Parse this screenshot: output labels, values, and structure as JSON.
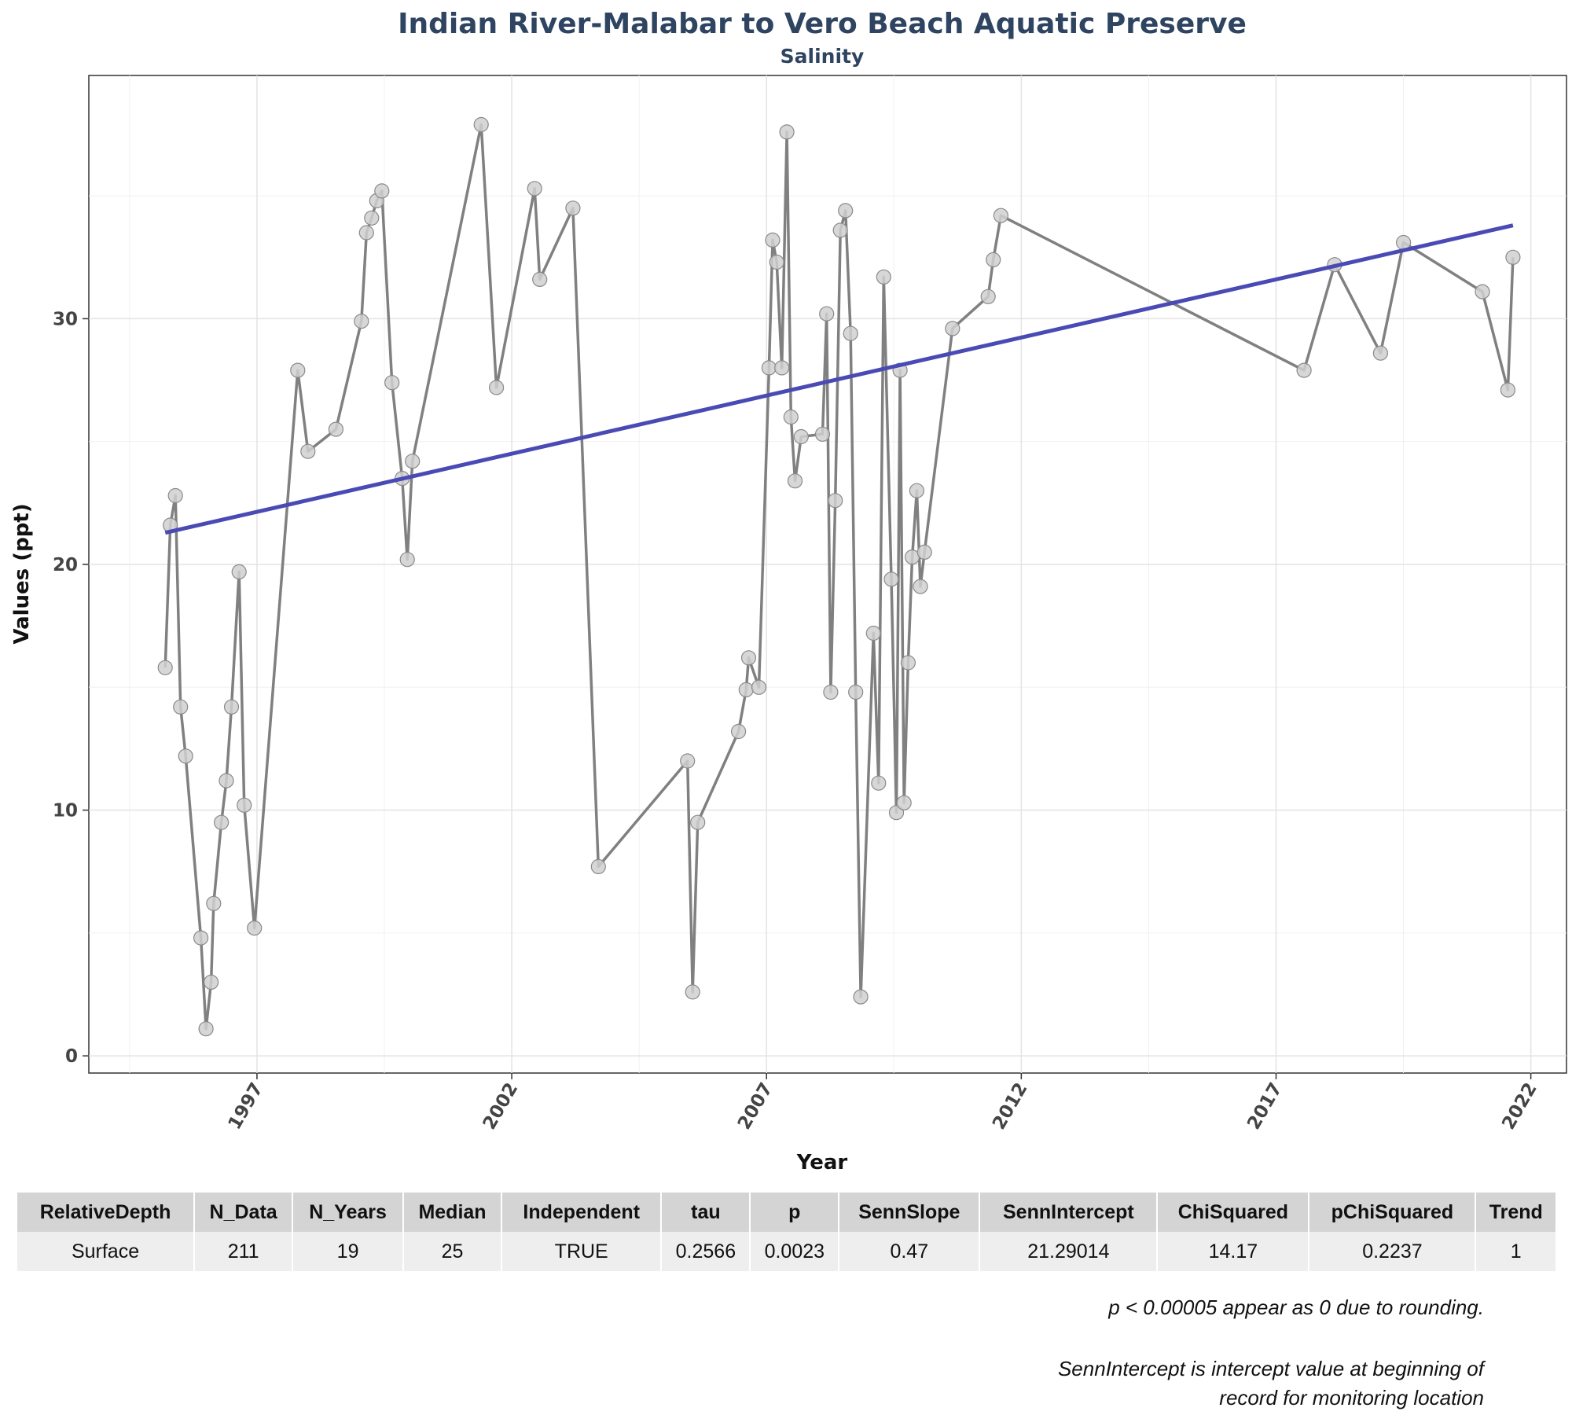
{
  "chart_data": {
    "type": "line",
    "title": "Indian River-Malabar to Vero Beach Aquatic Preserve",
    "subtitle": "Salinity",
    "xlabel": "Year",
    "ylabel": "Values (ppt)",
    "xlim": [
      1993.7,
      2022.7
    ],
    "ylim": [
      -0.7,
      39.9
    ],
    "x_ticks": [
      "1997",
      "2002",
      "2007",
      "2012",
      "2017",
      "2022"
    ],
    "y_ticks": [
      "0",
      "10",
      "20",
      "30"
    ],
    "grid": true,
    "series": [
      {
        "points": [
          [
            1995.2,
            15.8
          ],
          [
            1995.3,
            21.6
          ],
          [
            1995.4,
            22.8
          ],
          [
            1995.5,
            14.2
          ],
          [
            1995.6,
            12.2
          ],
          [
            1995.9,
            4.8
          ],
          [
            1996.0,
            1.1
          ],
          [
            1996.1,
            3.0
          ],
          [
            1996.15,
            6.2
          ],
          [
            1996.3,
            9.5
          ],
          [
            1996.4,
            11.2
          ],
          [
            1996.5,
            14.2
          ],
          [
            1996.65,
            19.7
          ],
          [
            1996.75,
            10.2
          ],
          [
            1996.95,
            5.2
          ],
          [
            1997.8,
            27.9
          ],
          [
            1998.0,
            24.6
          ],
          [
            1998.55,
            25.5
          ],
          [
            1999.05,
            29.9
          ],
          [
            1999.15,
            33.5
          ],
          [
            1999.25,
            34.1
          ],
          [
            1999.35,
            34.8
          ],
          [
            1999.45,
            35.2
          ],
          [
            1999.65,
            27.4
          ],
          [
            1999.85,
            23.5
          ],
          [
            1999.95,
            20.2
          ],
          [
            2000.05,
            24.2
          ],
          [
            2001.4,
            37.9
          ],
          [
            2001.7,
            27.2
          ],
          [
            2002.45,
            35.3
          ],
          [
            2002.55,
            31.6
          ],
          [
            2003.2,
            34.5
          ],
          [
            2003.7,
            7.7
          ],
          [
            2005.45,
            12.0
          ],
          [
            2005.55,
            2.6
          ],
          [
            2005.65,
            9.5
          ],
          [
            2006.45,
            13.2
          ],
          [
            2006.6,
            14.9
          ],
          [
            2006.65,
            16.2
          ],
          [
            2006.85,
            15.0
          ],
          [
            2007.05,
            28.0
          ],
          [
            2007.12,
            33.2
          ],
          [
            2007.2,
            32.3
          ],
          [
            2007.3,
            28.0
          ],
          [
            2007.4,
            37.6
          ],
          [
            2007.48,
            26.0
          ],
          [
            2007.56,
            23.4
          ],
          [
            2007.68,
            25.2
          ],
          [
            2008.1,
            25.3
          ],
          [
            2008.18,
            30.2
          ],
          [
            2008.26,
            14.8
          ],
          [
            2008.35,
            22.6
          ],
          [
            2008.45,
            33.6
          ],
          [
            2008.55,
            34.4
          ],
          [
            2008.65,
            29.4
          ],
          [
            2008.75,
            14.8
          ],
          [
            2008.85,
            2.4
          ],
          [
            2009.1,
            17.2
          ],
          [
            2009.2,
            11.1
          ],
          [
            2009.3,
            31.7
          ],
          [
            2009.45,
            19.4
          ],
          [
            2009.55,
            9.9
          ],
          [
            2009.62,
            27.9
          ],
          [
            2009.7,
            10.3
          ],
          [
            2009.78,
            16.0
          ],
          [
            2009.86,
            20.3
          ],
          [
            2009.95,
            23.0
          ],
          [
            2010.02,
            19.1
          ],
          [
            2010.1,
            20.5
          ],
          [
            2010.65,
            29.6
          ],
          [
            2011.35,
            30.9
          ],
          [
            2011.45,
            32.4
          ],
          [
            2011.6,
            34.2
          ],
          [
            2017.55,
            27.9
          ],
          [
            2018.15,
            32.2
          ],
          [
            2019.05,
            28.6
          ],
          [
            2019.5,
            33.1
          ],
          [
            2021.05,
            31.1
          ],
          [
            2021.55,
            27.1
          ],
          [
            2021.65,
            32.5
          ]
        ]
      }
    ],
    "trend_line": {
      "x": [
        1995.2,
        2021.65
      ],
      "y": [
        21.29,
        33.8
      ]
    },
    "colors": {
      "line": "#808080",
      "trend": "#4a4ab5",
      "point_fill": "#d0d0d0",
      "point_edge": "#8a8a8a"
    }
  },
  "stats_table": {
    "headers": [
      "RelativeDepth",
      "N_Data",
      "N_Years",
      "Median",
      "Independent",
      "tau",
      "p",
      "SennSlope",
      "SennIntercept",
      "ChiSquared",
      "pChiSquared",
      "Trend"
    ],
    "rows": [
      [
        "Surface",
        "211",
        "19",
        "25",
        "TRUE",
        "0.2566",
        "0.0023",
        "0.47",
        "21.29014",
        "14.17",
        "0.2237",
        "1"
      ]
    ]
  },
  "notes": {
    "rounding": "p < 0.00005 appear as 0 due to rounding.",
    "intercept_line1": "SennIntercept is intercept value at beginning of",
    "intercept_line2": "record for monitoring location"
  }
}
